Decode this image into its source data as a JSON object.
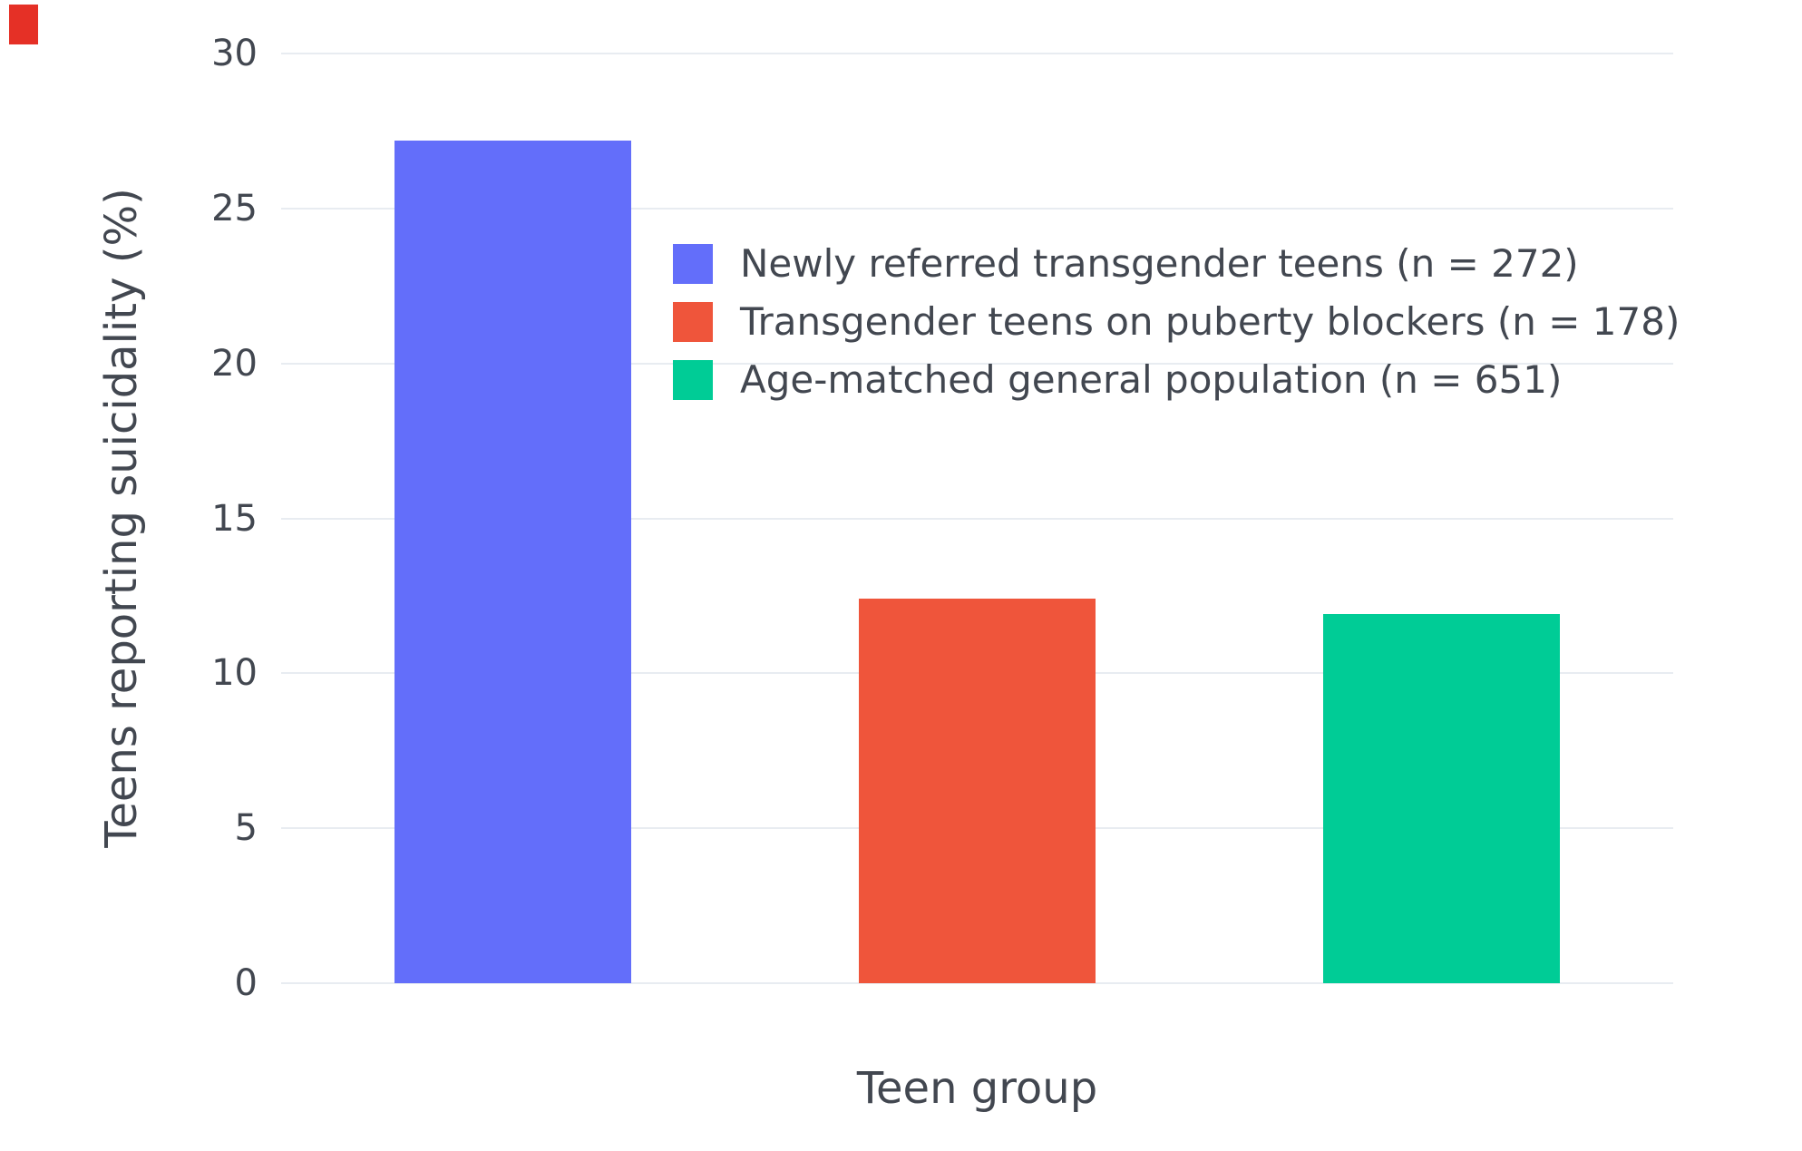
{
  "chart_data": {
    "type": "bar",
    "title": "",
    "xlabel": "Teen group",
    "ylabel": "Teens reporting suicidality (%)",
    "ylim": [
      0,
      30
    ],
    "yticks": [
      0,
      5,
      10,
      15,
      20,
      25,
      30
    ],
    "grid": true,
    "legend_position": "inside-top-left-of-plot",
    "categories": [
      "Newly referred transgender teens (n = 272)",
      "Transgender teens on puberty blockers (n = 178)",
      "Age-matched general population (n = 651)"
    ],
    "series": [
      {
        "name": "Newly referred transgender teens (n = 272)",
        "value": 27.2,
        "color": "#636EFA"
      },
      {
        "name": "Transgender teens on puberty blockers (n = 178)",
        "value": 12.4,
        "color": "#EF553B"
      },
      {
        "name": "Age-matched general population (n = 651)",
        "value": 11.9,
        "color": "#00CC96"
      }
    ]
  },
  "colors": {
    "background": "#ffffff",
    "grid": "#e8ecf1",
    "text": "#424750",
    "corner_marker": "#e53026"
  }
}
